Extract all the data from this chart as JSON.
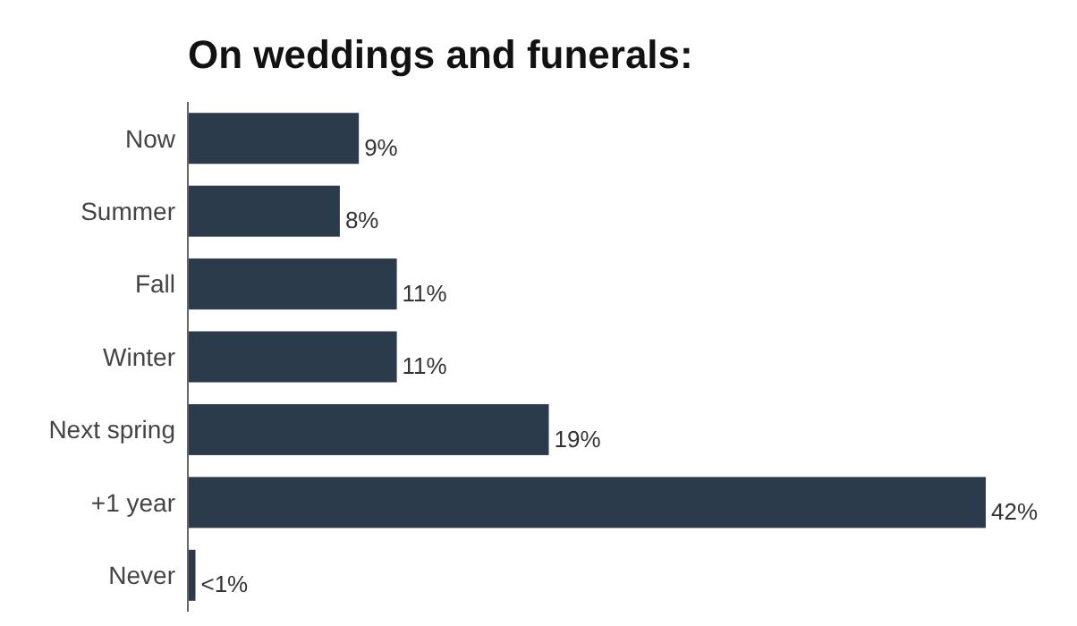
{
  "chart_data": {
    "type": "bar",
    "orientation": "horizontal",
    "title": "On weddings and funerals:",
    "categories": [
      "Now",
      "Summer",
      "Fall",
      "Winter",
      "Next spring",
      "+1 year",
      "Never"
    ],
    "values": [
      9,
      8,
      11,
      11,
      19,
      42,
      0.4
    ],
    "value_labels": [
      "9%",
      "8%",
      "11%",
      "11%",
      "19%",
      "42%",
      "<1%"
    ],
    "color": "#2b3b4c"
  }
}
